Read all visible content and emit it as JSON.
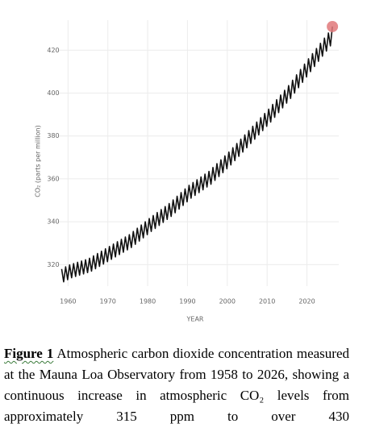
{
  "chart_data": {
    "type": "line",
    "ylabel": "CO₂ (parts per million)",
    "xlabel": "YEAR",
    "xlim": [
      1957.5,
      2028
    ],
    "ylim": [
      310,
      434
    ],
    "xticks": [
      1960,
      1970,
      1980,
      1990,
      2000,
      2010,
      2020
    ],
    "yticks": [
      320,
      340,
      360,
      380,
      400,
      420
    ],
    "grid": true,
    "color": "#111111",
    "end_marker_color": "#e0787a",
    "x": [
      1958.4,
      1958.9,
      1959.4,
      1959.9,
      1960.4,
      1960.9,
      1961.4,
      1961.9,
      1962.4,
      1962.9,
      1963.4,
      1963.9,
      1964.4,
      1964.9,
      1965.4,
      1965.9,
      1966.4,
      1966.9,
      1967.4,
      1967.9,
      1968.4,
      1968.9,
      1969.4,
      1969.9,
      1970.4,
      1970.9,
      1971.4,
      1971.9,
      1972.4,
      1972.9,
      1973.4,
      1973.9,
      1974.4,
      1974.9,
      1975.4,
      1975.9,
      1976.4,
      1976.9,
      1977.4,
      1977.9,
      1978.4,
      1978.9,
      1979.4,
      1979.9,
      1980.4,
      1980.9,
      1981.4,
      1981.9,
      1982.4,
      1982.9,
      1983.4,
      1983.9,
      1984.4,
      1984.9,
      1985.4,
      1985.9,
      1986.4,
      1986.9,
      1987.4,
      1987.9,
      1988.4,
      1988.9,
      1989.4,
      1989.9,
      1990.4,
      1990.9,
      1991.4,
      1991.9,
      1992.4,
      1992.9,
      1993.4,
      1993.9,
      1994.4,
      1994.9,
      1995.4,
      1995.9,
      1996.4,
      1996.9,
      1997.4,
      1997.9,
      1998.4,
      1998.9,
      1999.4,
      1999.9,
      2000.4,
      2000.9,
      2001.4,
      2001.9,
      2002.4,
      2002.9,
      2003.4,
      2003.9,
      2004.4,
      2004.9,
      2005.4,
      2005.9,
      2006.4,
      2006.9,
      2007.4,
      2007.9,
      2008.4,
      2008.9,
      2009.4,
      2009.9,
      2010.4,
      2010.9,
      2011.4,
      2011.9,
      2012.4,
      2012.9,
      2013.4,
      2013.9,
      2014.4,
      2014.9,
      2015.4,
      2015.9,
      2016.4,
      2016.9,
      2017.4,
      2017.9,
      2018.4,
      2018.9,
      2019.4,
      2019.9,
      2020.4,
      2020.9,
      2021.4,
      2021.9,
      2022.4,
      2022.9,
      2023.4,
      2023.9,
      2024.4,
      2024.9,
      2025.4,
      2025.9,
      2026.4
    ],
    "values": [
      318,
      312,
      319,
      313,
      319.9,
      313.9,
      320.5,
      314.5,
      321.1,
      315.1,
      321.7,
      315.7,
      322.3,
      316.3,
      323,
      317,
      324.1,
      318.1,
      325.2,
      319.2,
      326.3,
      320.3,
      327.4,
      321.4,
      328.5,
      322.5,
      329.6,
      323.6,
      330.7,
      324.7,
      331.8,
      325.8,
      332.9,
      326.9,
      334,
      328,
      335.5,
      329.5,
      337,
      331,
      338.5,
      332.5,
      340,
      334,
      341.5,
      335.5,
      342.9,
      336.9,
      344.3,
      338.3,
      345.7,
      339.7,
      347.1,
      341.1,
      348.5,
      342.5,
      350.2,
      344.2,
      351.9,
      345.9,
      353.6,
      347.6,
      355.3,
      349.3,
      357,
      351,
      358.3,
      352.3,
      359.6,
      353.6,
      360.9,
      354.9,
      362.2,
      356.2,
      363.5,
      357.5,
      365.3,
      359.3,
      367.1,
      361.1,
      368.9,
      362.9,
      370.7,
      364.7,
      372.5,
      366.5,
      374.5,
      368.5,
      376.5,
      370.5,
      378.5,
      372.5,
      380.5,
      374.5,
      382.5,
      376.5,
      384.5,
      378.5,
      386.5,
      380.5,
      388.5,
      382.5,
      390.5,
      384.5,
      392.5,
      386.5,
      394.7,
      388.7,
      396.9,
      390.9,
      399.1,
      393.1,
      401.3,
      395.3,
      403.5,
      397.5,
      406,
      400,
      408.5,
      402.5,
      411,
      405,
      413.5,
      407.5,
      416,
      410,
      418.4,
      412.4,
      420.8,
      414.8,
      423.2,
      417.2,
      425.6,
      419.6,
      428,
      422,
      431
    ]
  },
  "caption": {
    "label": "Figure 1",
    "text": "Atmospheric carbon dioxide concentration measured at the Mauna Loa Observatory from 1958 to 2026, showing a continuous increase in atmospheric CO₂ levels from approximately 315 ppm to over 430"
  }
}
